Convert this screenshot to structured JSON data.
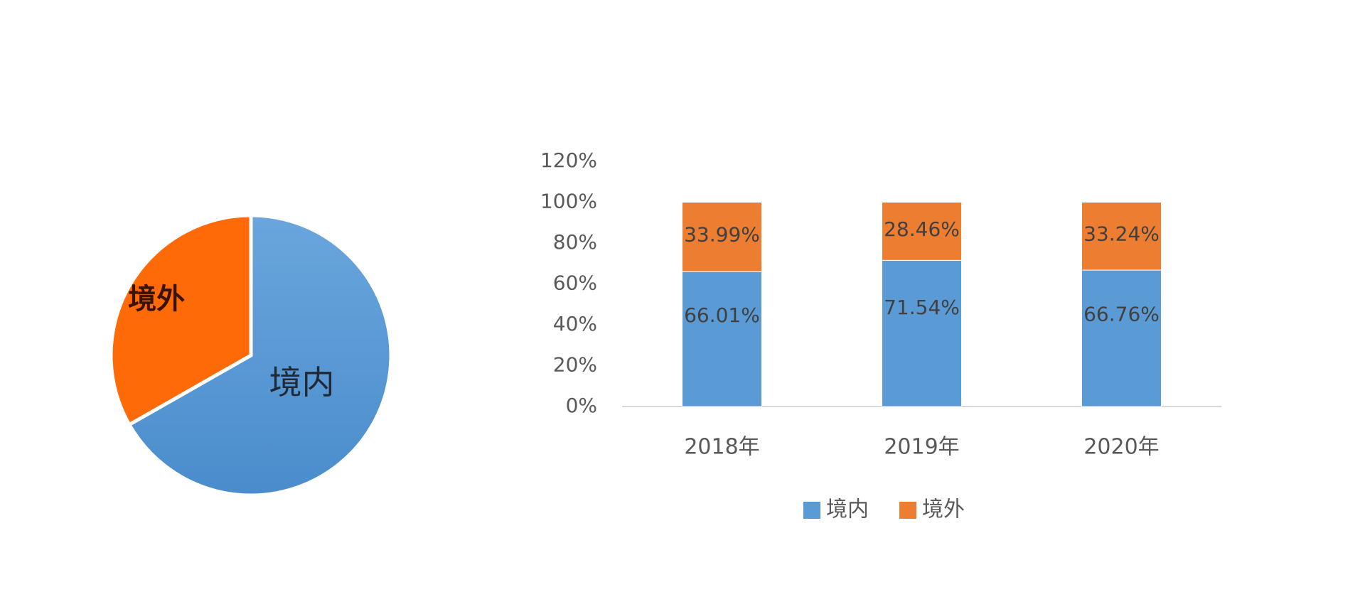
{
  "chart_data": [
    {
      "type": "pie",
      "slices": [
        {
          "label": "境内",
          "value": 66.76,
          "color": "#5b9bd5"
        },
        {
          "label": "境外",
          "value": 33.24,
          "color": "#ff6a08"
        }
      ],
      "labels_on_slices": true
    },
    {
      "type": "bar",
      "stacked": true,
      "categories": [
        "2018年",
        "2019年",
        "2020年"
      ],
      "series": [
        {
          "name": "境内",
          "values": [
            66.01,
            71.54,
            66.76
          ],
          "labels": [
            "66.01%",
            "71.54%",
            "66.76%"
          ],
          "color": "#5b9bd5"
        },
        {
          "name": "境外",
          "values": [
            33.99,
            28.46,
            33.24
          ],
          "labels": [
            "33.99%",
            "28.46%",
            "33.24%"
          ],
          "color": "#ed7d31"
        }
      ],
      "yticks": [
        "0%",
        "20%",
        "40%",
        "60%",
        "80%",
        "100%",
        "120%"
      ],
      "ylim": [
        0,
        120
      ],
      "grid": false,
      "legend": "bottom"
    }
  ]
}
